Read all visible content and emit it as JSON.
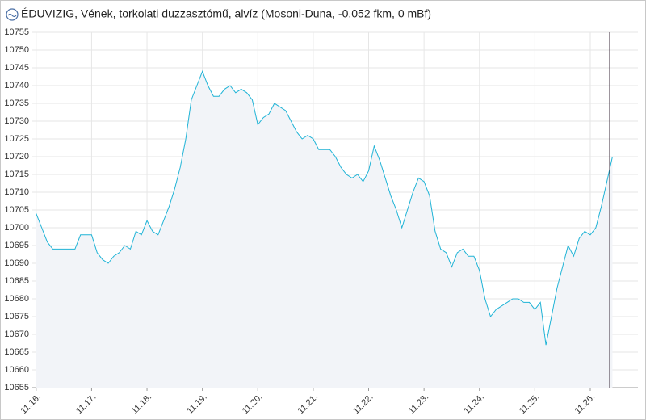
{
  "chart_data": {
    "type": "line",
    "title": "ÉDUVIZIG, Vének, torkolati duzzasztómű, alvíz (Mosoni-Duna, -0.052 fkm, 0 mBf)",
    "x": [
      16.0,
      16.1,
      16.2,
      16.3,
      16.4,
      16.5,
      16.6,
      16.7,
      16.8,
      16.9,
      17.0,
      17.1,
      17.2,
      17.3,
      17.4,
      17.5,
      17.6,
      17.7,
      17.8,
      17.9,
      18.0,
      18.1,
      18.2,
      18.3,
      18.4,
      18.5,
      18.6,
      18.7,
      18.8,
      18.9,
      19.0,
      19.1,
      19.2,
      19.3,
      19.4,
      19.5,
      19.6,
      19.7,
      19.8,
      19.9,
      20.0,
      20.1,
      20.2,
      20.3,
      20.4,
      20.5,
      20.6,
      20.7,
      20.8,
      20.9,
      21.0,
      21.1,
      21.2,
      21.3,
      21.4,
      21.5,
      21.6,
      21.7,
      21.8,
      21.9,
      22.0,
      22.1,
      22.2,
      22.3,
      22.4,
      22.5,
      22.6,
      22.7,
      22.8,
      22.9,
      23.0,
      23.1,
      23.2,
      23.3,
      23.4,
      23.5,
      23.6,
      23.7,
      23.8,
      23.9,
      24.0,
      24.1,
      24.2,
      24.3,
      24.4,
      24.5,
      24.6,
      24.7,
      24.8,
      24.9,
      25.0,
      25.1,
      25.2,
      25.3,
      25.4,
      25.5,
      25.6,
      25.7,
      25.8,
      25.9,
      26.0,
      26.1,
      26.2,
      26.3,
      26.4
    ],
    "series": [
      {
        "color": "#1fb3d6",
        "values": [
          10704,
          10700,
          10696,
          10694,
          10694,
          10694,
          10694,
          10694,
          10698,
          10698,
          10698,
          10693,
          10691,
          10690,
          10692,
          10693,
          10695,
          10694,
          10699,
          10698,
          10702,
          10699,
          10698,
          10702,
          10706,
          10711,
          10717,
          10725,
          10736,
          10740,
          10744,
          10740,
          10737,
          10737,
          10739,
          10740,
          10738,
          10739,
          10738,
          10736,
          10729,
          10731,
          10732,
          10735,
          10734,
          10733,
          10730,
          10727,
          10725,
          10726,
          10725,
          10722,
          10722,
          10722,
          10720,
          10717,
          10715,
          10714,
          10715,
          10713,
          10716,
          10723,
          10719,
          10714,
          10709,
          10705,
          10700,
          10705,
          10710,
          10714,
          10713,
          10709,
          10699,
          10694,
          10693,
          10689,
          10693,
          10694,
          10692,
          10692,
          10688,
          10680,
          10675,
          10677,
          10678,
          10679,
          10680,
          10680,
          10679,
          10679,
          10677,
          10679,
          10667,
          10675,
          10683,
          10689,
          10695,
          10692,
          10697,
          10699,
          10698,
          10700,
          10706,
          10713,
          10720
        ]
      }
    ],
    "area_color": "#f2f4f8",
    "xlim": [
      15.93,
      26.86
    ],
    "xticks": [
      {
        "value": 16,
        "label": "11.16."
      },
      {
        "value": 17,
        "label": "11.17."
      },
      {
        "value": 18,
        "label": "11.18."
      },
      {
        "value": 19,
        "label": "11.19."
      },
      {
        "value": 20,
        "label": "11.20."
      },
      {
        "value": 21,
        "label": "11.21."
      },
      {
        "value": 22,
        "label": "11.22."
      },
      {
        "value": 23,
        "label": "11.23."
      },
      {
        "value": 24,
        "label": "11.24."
      },
      {
        "value": 25,
        "label": "11.25."
      },
      {
        "value": 26,
        "label": "11.26."
      }
    ],
    "ylim": [
      10655,
      10755
    ],
    "yticks": [
      10655,
      10660,
      10665,
      10670,
      10675,
      10680,
      10685,
      10690,
      10695,
      10700,
      10705,
      10710,
      10715,
      10720,
      10725,
      10730,
      10735,
      10740,
      10745,
      10750,
      10755
    ],
    "grid": true,
    "cursor_x": 26.35
  }
}
